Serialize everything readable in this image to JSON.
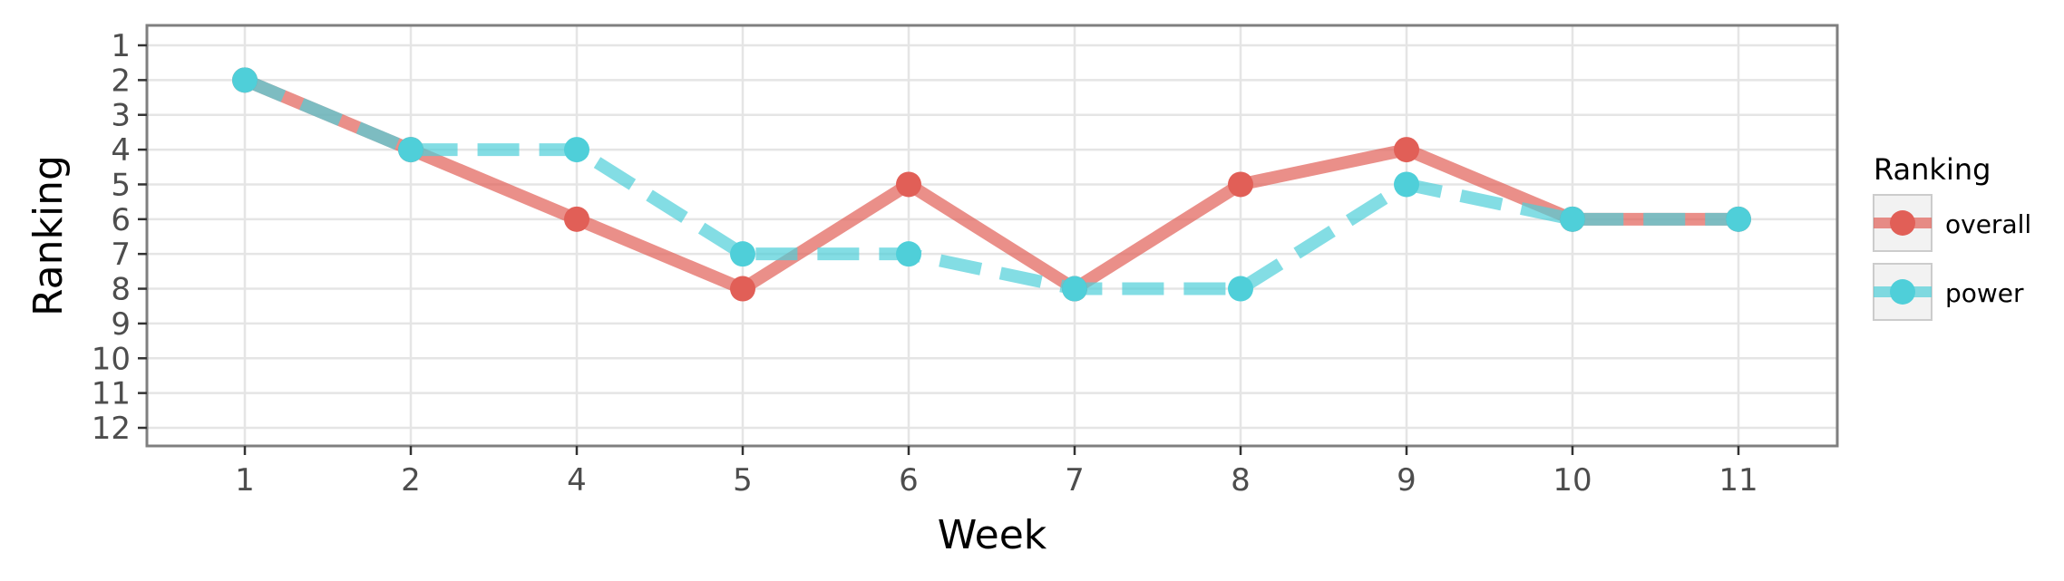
{
  "chart_data": {
    "type": "line",
    "xlabel": "Week",
    "ylabel": "Ranking",
    "x_categories": [
      "1",
      "2",
      "4",
      "5",
      "6",
      "7",
      "8",
      "9",
      "10",
      "11"
    ],
    "y_ticks": [
      "1",
      "2",
      "3",
      "4",
      "5",
      "6",
      "7",
      "8",
      "9",
      "10",
      "11",
      "12"
    ],
    "ylim": [
      1,
      12
    ],
    "y_reversed": true,
    "grid": true,
    "legend": {
      "title": "Ranking",
      "placement": "right"
    },
    "series": [
      {
        "name": "overall",
        "color": "#e15f57",
        "line_style": "solid",
        "values": [
          2,
          4,
          6,
          8,
          5,
          8,
          5,
          4,
          6,
          6
        ]
      },
      {
        "name": "power",
        "color": "#4fcfd9",
        "line_style": "dashed",
        "values": [
          2,
          4,
          4,
          7,
          7,
          8,
          8,
          5,
          6,
          6
        ]
      }
    ]
  }
}
